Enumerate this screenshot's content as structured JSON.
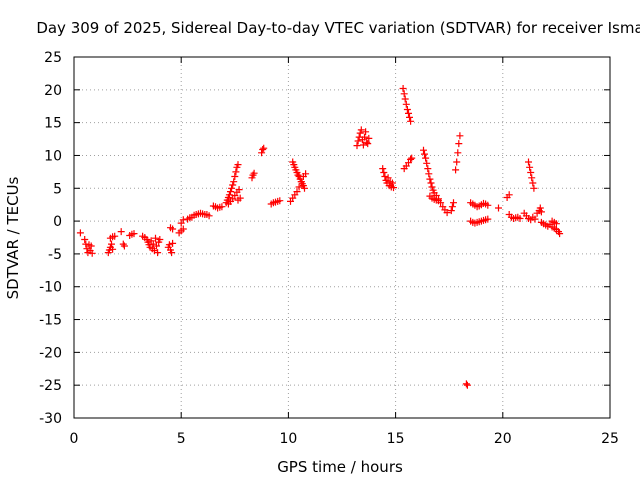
{
  "chart_data": {
    "type": "scatter",
    "title": "Day 309 of 2025, Sidereal Day-to-day VTEC variation (SDTVAR) for receiver Isma",
    "xlabel": "GPS time / hours",
    "ylabel": "SDTVAR / TECUs",
    "xlim": [
      0,
      25
    ],
    "ylim": [
      -30,
      25
    ],
    "xticks": [
      0,
      5,
      10,
      15,
      20,
      25
    ],
    "yticks": [
      -30,
      -25,
      -20,
      -15,
      -10,
      -5,
      0,
      5,
      10,
      15,
      20,
      25
    ],
    "grid": true,
    "marker": "plus",
    "color": "#ff0000",
    "series": [
      {
        "name": "SDTVAR",
        "points": [
          [
            0.3,
            -1.8
          ],
          [
            0.5,
            -2.8
          ],
          [
            0.55,
            -3.5
          ],
          [
            0.6,
            -4.2
          ],
          [
            0.65,
            -4.8
          ],
          [
            0.7,
            -3.6
          ],
          [
            0.75,
            -4.5
          ],
          [
            0.8,
            -3.8
          ],
          [
            0.85,
            -4.9
          ],
          [
            1.6,
            -4.8
          ],
          [
            1.65,
            -4.4
          ],
          [
            1.7,
            -4.0
          ],
          [
            1.75,
            -3.5
          ],
          [
            1.8,
            -4.3
          ],
          [
            1.7,
            -2.6
          ],
          [
            1.8,
            -2.4
          ],
          [
            1.9,
            -2.3
          ],
          [
            2.2,
            -1.6
          ],
          [
            2.3,
            -3.5
          ],
          [
            2.35,
            -3.8
          ],
          [
            2.6,
            -2.2
          ],
          [
            2.7,
            -2.0
          ],
          [
            2.8,
            -1.9
          ],
          [
            3.2,
            -2.3
          ],
          [
            3.3,
            -2.5
          ],
          [
            3.4,
            -2.8
          ],
          [
            3.45,
            -3.2
          ],
          [
            3.5,
            -3.6
          ],
          [
            3.55,
            -4.0
          ],
          [
            3.6,
            -3.0
          ],
          [
            3.65,
            -4.2
          ],
          [
            3.7,
            -3.5
          ],
          [
            3.75,
            -4.5
          ],
          [
            3.8,
            -2.6
          ],
          [
            3.85,
            -3.8
          ],
          [
            3.9,
            -4.8
          ],
          [
            3.95,
            -3.2
          ],
          [
            4.0,
            -2.8
          ],
          [
            4.4,
            -4.0
          ],
          [
            4.45,
            -3.6
          ],
          [
            4.5,
            -4.4
          ],
          [
            4.55,
            -4.8
          ],
          [
            4.6,
            -3.4
          ],
          [
            4.5,
            -1.0
          ],
          [
            4.6,
            -1.2
          ],
          [
            4.9,
            -1.8
          ],
          [
            5.0,
            -1.5
          ],
          [
            5.1,
            -1.2
          ],
          [
            5.0,
            -0.3
          ],
          [
            5.1,
            0.2
          ],
          [
            5.3,
            0.3
          ],
          [
            5.4,
            0.5
          ],
          [
            5.5,
            0.6
          ],
          [
            5.6,
            0.9
          ],
          [
            5.7,
            1.0
          ],
          [
            5.8,
            1.1
          ],
          [
            5.9,
            1.2
          ],
          [
            6.0,
            1.1
          ],
          [
            6.1,
            1.0
          ],
          [
            6.2,
            1.0
          ],
          [
            6.3,
            0.8
          ],
          [
            6.5,
            2.3
          ],
          [
            6.6,
            2.2
          ],
          [
            6.7,
            2.0
          ],
          [
            6.8,
            2.1
          ],
          [
            6.9,
            2.2
          ],
          [
            7.1,
            2.8
          ],
          [
            7.15,
            3.2
          ],
          [
            7.2,
            3.6
          ],
          [
            7.25,
            4.0
          ],
          [
            7.3,
            4.5
          ],
          [
            7.35,
            5.0
          ],
          [
            7.4,
            5.5
          ],
          [
            7.45,
            6.0
          ],
          [
            7.5,
            6.8
          ],
          [
            7.55,
            7.5
          ],
          [
            7.6,
            8.2
          ],
          [
            7.65,
            8.6
          ],
          [
            7.2,
            2.6
          ],
          [
            7.3,
            3.0
          ],
          [
            7.4,
            3.4
          ],
          [
            7.5,
            3.9
          ],
          [
            7.6,
            4.4
          ],
          [
            7.65,
            3.2
          ],
          [
            7.7,
            4.8
          ],
          [
            7.75,
            3.5
          ],
          [
            8.3,
            6.6
          ],
          [
            8.35,
            7.0
          ],
          [
            8.4,
            7.3
          ],
          [
            8.75,
            10.4
          ],
          [
            8.8,
            10.9
          ],
          [
            8.85,
            11.1
          ],
          [
            9.2,
            2.6
          ],
          [
            9.3,
            2.8
          ],
          [
            9.4,
            2.9
          ],
          [
            9.5,
            3.0
          ],
          [
            9.6,
            3.1
          ],
          [
            10.1,
            3.0
          ],
          [
            10.2,
            3.5
          ],
          [
            10.3,
            4.0
          ],
          [
            10.4,
            4.5
          ],
          [
            10.5,
            5.2
          ],
          [
            10.6,
            6.0
          ],
          [
            10.7,
            6.8
          ],
          [
            10.8,
            7.2
          ],
          [
            10.2,
            9.0
          ],
          [
            10.25,
            8.6
          ],
          [
            10.3,
            8.2
          ],
          [
            10.35,
            7.8
          ],
          [
            10.4,
            7.4
          ],
          [
            10.45,
            7.0
          ],
          [
            10.5,
            6.8
          ],
          [
            10.55,
            6.4
          ],
          [
            10.6,
            6.0
          ],
          [
            10.65,
            5.7
          ],
          [
            10.7,
            5.4
          ],
          [
            10.75,
            5.0
          ],
          [
            13.2,
            11.5
          ],
          [
            13.25,
            12.2
          ],
          [
            13.3,
            12.8
          ],
          [
            13.35,
            13.4
          ],
          [
            13.4,
            13.9
          ],
          [
            13.45,
            12.4
          ],
          [
            13.5,
            11.6
          ],
          [
            13.55,
            12.8
          ],
          [
            13.6,
            13.6
          ],
          [
            13.65,
            12.0
          ],
          [
            13.7,
            11.8
          ],
          [
            13.75,
            12.6
          ],
          [
            14.4,
            8.0
          ],
          [
            14.45,
            7.4
          ],
          [
            14.5,
            6.8
          ],
          [
            14.55,
            6.2
          ],
          [
            14.6,
            5.8
          ],
          [
            14.65,
            6.6
          ],
          [
            14.7,
            5.4
          ],
          [
            14.75,
            6.0
          ],
          [
            14.8,
            5.2
          ],
          [
            14.85,
            5.8
          ],
          [
            14.9,
            5.1
          ],
          [
            15.35,
            20.2
          ],
          [
            15.4,
            19.4
          ],
          [
            15.45,
            18.6
          ],
          [
            15.5,
            17.8
          ],
          [
            15.55,
            17.0
          ],
          [
            15.6,
            16.4
          ],
          [
            15.65,
            15.8
          ],
          [
            15.7,
            15.2
          ],
          [
            15.4,
            8.0
          ],
          [
            15.5,
            8.4
          ],
          [
            15.6,
            8.9
          ],
          [
            15.7,
            9.4
          ],
          [
            15.75,
            9.6
          ],
          [
            16.3,
            10.8
          ],
          [
            16.35,
            10.2
          ],
          [
            16.4,
            9.6
          ],
          [
            16.45,
            8.8
          ],
          [
            16.5,
            8.0
          ],
          [
            16.55,
            7.2
          ],
          [
            16.6,
            6.4
          ],
          [
            16.65,
            5.8
          ],
          [
            16.7,
            5.2
          ],
          [
            16.75,
            4.7
          ],
          [
            16.8,
            4.3
          ],
          [
            16.9,
            3.9
          ],
          [
            17.0,
            3.4
          ],
          [
            17.1,
            2.8
          ],
          [
            17.2,
            2.2
          ],
          [
            17.3,
            1.7
          ],
          [
            17.4,
            1.3
          ],
          [
            16.6,
            3.8
          ],
          [
            16.7,
            3.5
          ],
          [
            16.8,
            3.3
          ],
          [
            16.9,
            3.2
          ],
          [
            17.0,
            3.1
          ],
          [
            17.6,
            1.6
          ],
          [
            17.65,
            2.2
          ],
          [
            17.7,
            2.8
          ],
          [
            17.8,
            7.8
          ],
          [
            17.85,
            9.0
          ],
          [
            17.9,
            10.4
          ],
          [
            17.95,
            11.8
          ],
          [
            18.0,
            13.0
          ],
          [
            18.3,
            -24.8
          ],
          [
            18.35,
            -25.0
          ],
          [
            18.5,
            2.8
          ],
          [
            18.6,
            2.6
          ],
          [
            18.7,
            2.4
          ],
          [
            18.8,
            2.2
          ],
          [
            18.9,
            2.3
          ],
          [
            19.0,
            2.5
          ],
          [
            19.1,
            2.7
          ],
          [
            19.2,
            2.6
          ],
          [
            19.3,
            2.4
          ],
          [
            18.5,
            0.0
          ],
          [
            18.6,
            -0.2
          ],
          [
            18.7,
            -0.3
          ],
          [
            18.8,
            -0.2
          ],
          [
            18.9,
            -0.1
          ],
          [
            19.0,
            0.0
          ],
          [
            19.1,
            0.1
          ],
          [
            19.2,
            0.2
          ],
          [
            19.3,
            0.3
          ],
          [
            19.8,
            2.0
          ],
          [
            20.2,
            3.6
          ],
          [
            20.3,
            4.0
          ],
          [
            20.3,
            1.0
          ],
          [
            20.4,
            0.6
          ],
          [
            20.5,
            0.4
          ],
          [
            20.6,
            0.5
          ],
          [
            20.7,
            0.6
          ],
          [
            20.8,
            0.4
          ],
          [
            21.0,
            1.2
          ],
          [
            21.1,
            0.8
          ],
          [
            21.2,
            0.4
          ],
          [
            21.3,
            0.2
          ],
          [
            21.4,
            0.6
          ],
          [
            21.5,
            0.3
          ],
          [
            21.2,
            9.0
          ],
          [
            21.25,
            8.2
          ],
          [
            21.3,
            7.4
          ],
          [
            21.35,
            6.6
          ],
          [
            21.4,
            5.8
          ],
          [
            21.45,
            5.0
          ],
          [
            21.6,
            1.2
          ],
          [
            21.7,
            1.6
          ],
          [
            21.75,
            2.0
          ],
          [
            21.8,
            1.4
          ],
          [
            21.8,
            -0.2
          ],
          [
            21.9,
            -0.4
          ],
          [
            22.0,
            -0.6
          ],
          [
            22.1,
            -0.8
          ],
          [
            22.2,
            -0.5
          ],
          [
            22.3,
            -0.9
          ],
          [
            22.4,
            -1.1
          ],
          [
            22.5,
            -1.3
          ],
          [
            22.6,
            -1.6
          ],
          [
            22.65,
            -1.9
          ],
          [
            22.3,
            0.0
          ],
          [
            22.4,
            -0.2
          ],
          [
            22.5,
            -0.4
          ]
        ]
      }
    ]
  }
}
